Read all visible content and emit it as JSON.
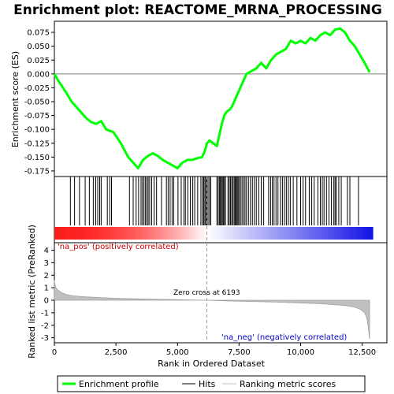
{
  "chart_data": {
    "type": "line",
    "title": "Enrichment plot: REACTOME_MRNA_PROCESSING",
    "panels": [
      {
        "name": "enrichment",
        "ylabel": "Enrichment score (ES)",
        "ylim": [
          -0.185,
          0.095
        ],
        "yticks": [
          0.075,
          0.05,
          0.025,
          0.0,
          -0.025,
          -0.05,
          -0.075,
          -0.1,
          -0.125,
          -0.15,
          -0.175
        ],
        "ytick_labels": [
          "0.075",
          "0.050",
          "0.025",
          "0.000",
          "-0.025",
          "-0.050",
          "-0.075",
          "-0.100",
          "-0.125",
          "-0.150",
          "-0.175"
        ],
        "series": [
          {
            "name": "Enrichment profile",
            "color": "#00ff00",
            "x": [
              0,
              200,
              500,
              700,
              900,
              1100,
              1300,
              1500,
              1700,
              1900,
              2100,
              2400,
              2700,
              3000,
              3200,
              3400,
              3600,
              3800,
              4000,
              4200,
              4400,
              4600,
              4800,
              5000,
              5200,
              5400,
              5600,
              5800,
              6000,
              6100,
              6200,
              6300,
              6450,
              6600,
              6700,
              6800,
              6900,
              7000,
              7100,
              7200,
              7400,
              7600,
              7800,
              8000,
              8200,
              8400,
              8600,
              8800,
              9000,
              9200,
              9400,
              9600,
              9800,
              10000,
              10200,
              10400,
              10600,
              10800,
              11000,
              11200,
              11400,
              11600,
              11800,
              12000,
              12200,
              12400,
              12600,
              12800
            ],
            "y": [
              0.0,
              -0.015,
              -0.035,
              -0.05,
              -0.06,
              -0.07,
              -0.08,
              -0.087,
              -0.09,
              -0.085,
              -0.1,
              -0.105,
              -0.125,
              -0.15,
              -0.16,
              -0.17,
              -0.155,
              -0.148,
              -0.143,
              -0.148,
              -0.155,
              -0.16,
              -0.165,
              -0.17,
              -0.16,
              -0.155,
              -0.155,
              -0.152,
              -0.15,
              -0.14,
              -0.125,
              -0.12,
              -0.125,
              -0.13,
              -0.11,
              -0.09,
              -0.075,
              -0.068,
              -0.065,
              -0.06,
              -0.04,
              -0.02,
              0.0,
              0.005,
              0.01,
              0.02,
              0.01,
              0.025,
              0.035,
              0.04,
              0.045,
              0.06,
              0.055,
              0.06,
              0.055,
              0.065,
              0.06,
              0.07,
              0.075,
              0.07,
              0.08,
              0.082,
              0.075,
              0.06,
              0.05,
              0.035,
              0.02,
              0.003
            ]
          }
        ]
      },
      {
        "name": "hits",
        "hit_positions": [
          650,
          820,
          1020,
          1250,
          1420,
          1580,
          1680,
          1760,
          1840,
          1900,
          2150,
          2250,
          2320,
          3050,
          3200,
          3320,
          3420,
          3520,
          3580,
          3640,
          3700,
          3760,
          3810,
          3870,
          3950,
          4050,
          4150,
          4350,
          4550,
          4620,
          4700,
          4780,
          4850,
          5020,
          5150,
          5260,
          5320,
          5420,
          5520,
          5620,
          5700,
          5820,
          5950,
          6020,
          6060,
          6110,
          6150,
          6190,
          6240,
          6300,
          6350,
          6600,
          6650,
          6700,
          6740,
          6780,
          6820,
          6860,
          6900,
          6950,
          7050,
          7100,
          7150,
          7200,
          7250,
          7300,
          7340,
          7380,
          7420,
          7460,
          7500,
          7560,
          7620,
          7680,
          7740,
          7800,
          7880,
          7960,
          8040,
          8120,
          8200,
          8300,
          8400,
          8500,
          8700,
          8780,
          8850,
          8920,
          9000,
          9080,
          9180,
          9260,
          9340,
          9420,
          9500,
          9580,
          9700,
          9850,
          10000,
          10100,
          10200,
          10350,
          10450,
          10550,
          10700,
          10800,
          10880,
          10950,
          11050,
          11150,
          11250,
          11350,
          11400,
          11450,
          11550,
          11650,
          11900,
          12000,
          12350
        ]
      },
      {
        "name": "ranked-metric",
        "ylabel": "Ranked list metric (PreRanked)",
        "xlabel": "Rank in Ordered Dataset",
        "xlim": [
          0,
          13000
        ],
        "xticks": [
          0,
          2500,
          5000,
          7500,
          10000,
          12500
        ],
        "xtick_labels": [
          "0",
          "2,500",
          "5,000",
          "7,500",
          "10,000",
          "12,500"
        ],
        "ylim": [
          -3.4,
          4.6
        ],
        "yticks": [
          4,
          3,
          2,
          1,
          0,
          -1,
          -2,
          -3
        ],
        "ytick_labels": [
          "4",
          "3",
          "2",
          "1",
          "0",
          "-1",
          "-2",
          "-3"
        ],
        "metric_x": [
          0,
          20,
          60,
          150,
          300,
          500,
          800,
          1200,
          1800,
          2500,
          3500,
          4500,
          5500,
          6193,
          7000,
          8000,
          9000,
          10000,
          11000,
          11800,
          12200,
          12450,
          12600,
          12700,
          12750,
          12800
        ],
        "metric_y": [
          1.6,
          1.3,
          1.0,
          0.8,
          0.6,
          0.45,
          0.35,
          0.28,
          0.22,
          0.16,
          0.1,
          0.06,
          0.02,
          0.0,
          -0.05,
          -0.1,
          -0.15,
          -0.22,
          -0.3,
          -0.42,
          -0.55,
          -0.75,
          -1.0,
          -1.5,
          -2.2,
          -3.1
        ],
        "annotations": {
          "zero_cross": "Zero cross at 6193",
          "zero_cross_x": 6193,
          "pos_label": "'na_pos' (positively correlated)",
          "neg_label": "'na_neg' (negatively correlated)"
        }
      }
    ],
    "legend": {
      "position": "bottom",
      "entries": [
        {
          "label": "Enrichment profile",
          "color": "#00ff00"
        },
        {
          "label": "Hits",
          "color": "#000000"
        },
        {
          "label": "Ranking metric scores",
          "color": "#c0c0c0"
        }
      ]
    },
    "colors": {
      "profile": "#00ff00",
      "hits": "#000000",
      "metric_fill": "#c0c0c0",
      "pos_text": "#cc0000",
      "neg_text": "#0000cc",
      "zero_line": "#999999"
    }
  }
}
